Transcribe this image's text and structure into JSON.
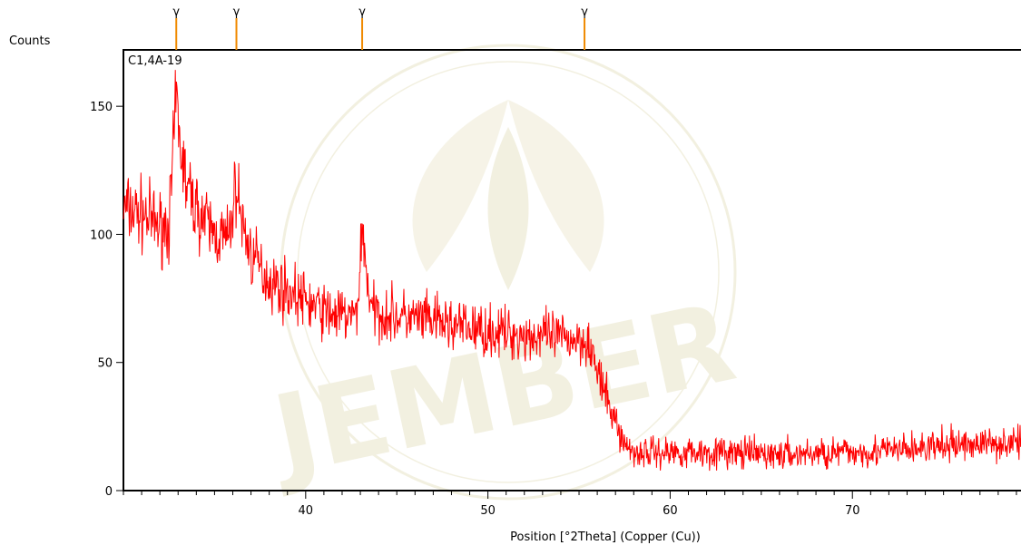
{
  "chart_data": {
    "type": "line",
    "sample_label": "C1,4A-19",
    "ylabel": "Counts",
    "xlabel": "Position [°2Theta] (Copper (Cu))",
    "xlim": [
      30.0,
      79.5
    ],
    "ylim": [
      0,
      172
    ],
    "x_ticks": [
      40,
      50,
      60,
      70
    ],
    "y_ticks": [
      0,
      50,
      100,
      150
    ],
    "line_color": "#ff0000",
    "marker_color": "#f08a00",
    "grid": false,
    "peak_markers": [
      {
        "label": "γ",
        "x": 32.9
      },
      {
        "label": "γ",
        "x": 36.2
      },
      {
        "label": "γ",
        "x": 43.1
      },
      {
        "label": "γ",
        "x": 55.3
      }
    ],
    "profile": [
      {
        "x": 30.0,
        "y": 110
      },
      {
        "x": 31.0,
        "y": 108
      },
      {
        "x": 32.0,
        "y": 103
      },
      {
        "x": 32.5,
        "y": 104
      },
      {
        "x": 32.7,
        "y": 125
      },
      {
        "x": 32.9,
        "y": 155
      },
      {
        "x": 33.1,
        "y": 135
      },
      {
        "x": 33.5,
        "y": 118
      },
      {
        "x": 34.0,
        "y": 110
      },
      {
        "x": 35.0,
        "y": 100
      },
      {
        "x": 35.8,
        "y": 98
      },
      {
        "x": 36.0,
        "y": 110
      },
      {
        "x": 36.2,
        "y": 120
      },
      {
        "x": 36.5,
        "y": 105
      },
      {
        "x": 37.0,
        "y": 92
      },
      {
        "x": 38.0,
        "y": 82
      },
      {
        "x": 39.0,
        "y": 78
      },
      {
        "x": 40.0,
        "y": 74
      },
      {
        "x": 41.0,
        "y": 70
      },
      {
        "x": 42.0,
        "y": 68
      },
      {
        "x": 42.8,
        "y": 68
      },
      {
        "x": 43.0,
        "y": 90
      },
      {
        "x": 43.1,
        "y": 103
      },
      {
        "x": 43.3,
        "y": 88
      },
      {
        "x": 43.6,
        "y": 70
      },
      {
        "x": 45.0,
        "y": 68
      },
      {
        "x": 47.0,
        "y": 66
      },
      {
        "x": 50.0,
        "y": 62
      },
      {
        "x": 53.0,
        "y": 60
      },
      {
        "x": 55.5,
        "y": 59
      },
      {
        "x": 56.0,
        "y": 46
      },
      {
        "x": 56.5,
        "y": 36
      },
      {
        "x": 57.0,
        "y": 27
      },
      {
        "x": 57.5,
        "y": 18
      },
      {
        "x": 58.0,
        "y": 15
      },
      {
        "x": 62.0,
        "y": 15
      },
      {
        "x": 66.0,
        "y": 14
      },
      {
        "x": 70.0,
        "y": 15
      },
      {
        "x": 73.0,
        "y": 16
      },
      {
        "x": 76.0,
        "y": 18
      },
      {
        "x": 79.5,
        "y": 19
      }
    ],
    "noise_amplitude": 9
  },
  "watermark": {
    "text": "JEMBER",
    "color": "#e9e4c8"
  }
}
